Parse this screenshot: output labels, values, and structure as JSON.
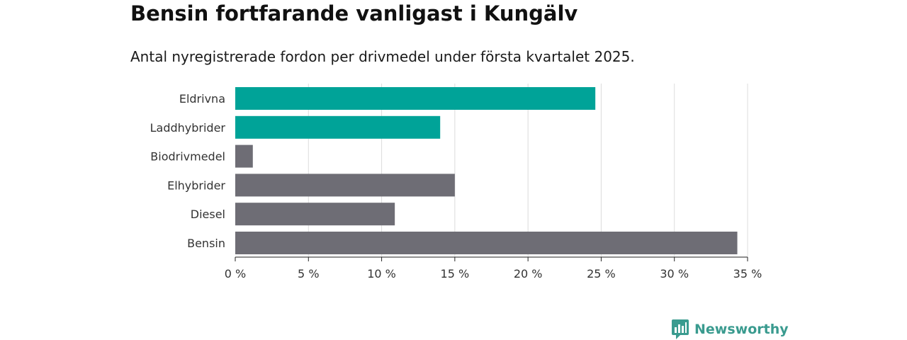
{
  "title": "Bensin fortfarande vanligast i Kungälv",
  "subtitle": "Antal nyregistrerade fordon per drivmedel under första kvartalet 2025.",
  "brand": {
    "name": "Newsworthy",
    "icon": "newsworthy-logo-icon",
    "color": "#3a9b8f"
  },
  "chart_data": {
    "type": "bar",
    "orientation": "horizontal",
    "categories": [
      "Eldrivna",
      "Laddhybrider",
      "Biodrivmedel",
      "Elhybrider",
      "Diesel",
      "Bensin"
    ],
    "values": [
      24.6,
      14.0,
      1.2,
      15.0,
      10.9,
      34.3
    ],
    "bar_colors": [
      "#00a398",
      "#00a398",
      "#6e6d75",
      "#6e6d75",
      "#6e6d75",
      "#6e6d75"
    ],
    "xlim": [
      0,
      35
    ],
    "x_ticks": [
      0,
      5,
      10,
      15,
      20,
      25,
      30,
      35
    ],
    "x_tick_labels": [
      "0 %",
      "5 %",
      "10 %",
      "15 %",
      "20 %",
      "25 %",
      "30 %",
      "35 %"
    ],
    "grid": "vertical",
    "xlabel": "",
    "ylabel": ""
  }
}
